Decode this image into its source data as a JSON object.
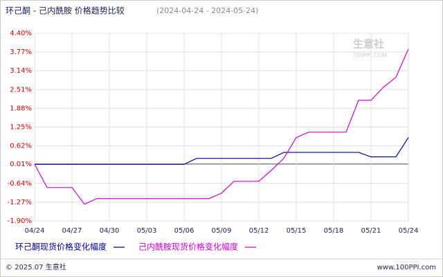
{
  "chart_data": {
    "type": "line",
    "title": "环己酮 - 己内酰胺 价格趋势比较",
    "subtitle": "(2024-04-24 - 2024-05-24)",
    "x": [
      "04/24",
      "04/25",
      "04/26",
      "04/27",
      "04/28",
      "04/29",
      "04/30",
      "05/01",
      "05/02",
      "05/03",
      "05/04",
      "05/05",
      "05/06",
      "05/07",
      "05/08",
      "05/09",
      "05/10",
      "05/11",
      "05/12",
      "05/13",
      "05/14",
      "05/15",
      "05/16",
      "05/17",
      "05/18",
      "05/19",
      "05/20",
      "05/21",
      "05/22",
      "05/23",
      "05/24"
    ],
    "xticks": [
      "04/24",
      "04/27",
      "04/30",
      "05/03",
      "05/06",
      "05/09",
      "05/12",
      "05/15",
      "05/18",
      "05/21",
      "05/24"
    ],
    "series": [
      {
        "name": "环己酮现货价格变化幅度",
        "color": "#00008b",
        "values": [
          0,
          0,
          0,
          0,
          0,
          0,
          0,
          0,
          0,
          0,
          0,
          0,
          0,
          0.2,
          0.2,
          0.2,
          0.2,
          0.2,
          0.2,
          0.2,
          0.4,
          0.4,
          0.4,
          0.4,
          0.4,
          0.4,
          0.4,
          0.25,
          0.25,
          0.25,
          0.9
        ]
      },
      {
        "name": "己内酰胺现货价格变化幅度",
        "color": "#cc00cc",
        "values": [
          0,
          -0.78,
          -0.78,
          -0.78,
          -1.34,
          -1.15,
          -1.15,
          -1.15,
          -1.15,
          -1.15,
          -1.15,
          -1.15,
          -1.15,
          -1.15,
          -1.15,
          -0.97,
          -0.57,
          -0.57,
          -0.57,
          -0.2,
          0.2,
          0.9,
          1.08,
          1.08,
          1.08,
          1.08,
          2.15,
          2.15,
          2.59,
          2.92,
          3.87
        ]
      }
    ],
    "ylim": [
      -1.9,
      4.4
    ],
    "yticks": [
      {
        "value": 4.4,
        "label": "4.40%"
      },
      {
        "value": 3.77,
        "label": "3.77%"
      },
      {
        "value": 3.14,
        "label": "3.14%"
      },
      {
        "value": 2.51,
        "label": "2.51%"
      },
      {
        "value": 1.88,
        "label": "1.88%"
      },
      {
        "value": 1.25,
        "label": "1.25%"
      },
      {
        "value": 0.62,
        "label": "0.62%"
      },
      {
        "value": 0.01,
        "label": "0.01%"
      },
      {
        "value": -0.64,
        "label": "-0.64%"
      },
      {
        "value": -1.27,
        "label": "-1.27%"
      },
      {
        "value": -1.9,
        "label": "-1.90%"
      }
    ],
    "grid": true,
    "watermark": "生意社",
    "watermark_sub": "100PPI.COM",
    "footer_left": "© 2025.07 生意社",
    "footer_right": "www.100PPI.com"
  }
}
